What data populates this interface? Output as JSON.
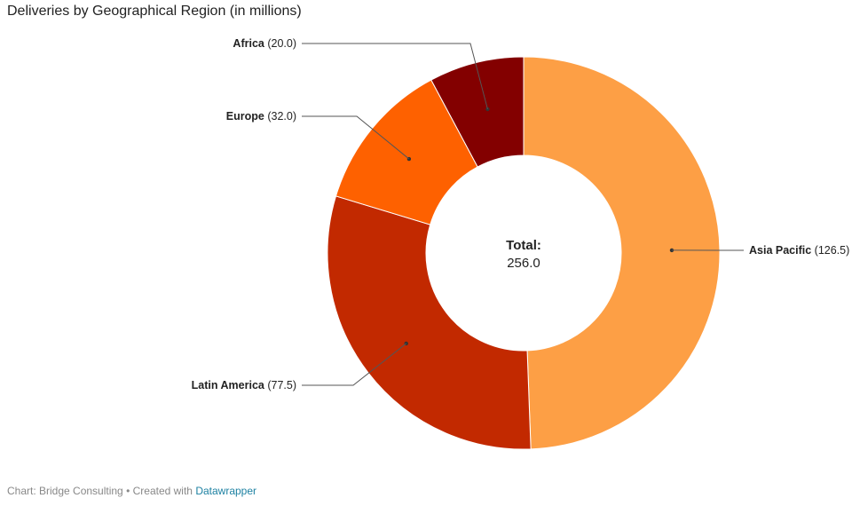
{
  "chart_data": {
    "type": "pie",
    "title": "Deliveries by Geographical Region (in millions)",
    "categories": [
      "Asia Pacific",
      "Latin America",
      "Europe",
      "Africa"
    ],
    "values": [
      126.5,
      77.5,
      32.0,
      20.0
    ],
    "value_labels": [
      "126.5",
      "77.5",
      "32.0",
      "20.0"
    ],
    "colors": [
      "#fd9f45",
      "#c22900",
      "#fe6100",
      "#830000"
    ],
    "center_title": "Total:",
    "center_value": "256.0",
    "donut": true
  },
  "footer": {
    "source": "Chart: Bridge Consulting • Created with ",
    "credit": "Datawrapper"
  }
}
